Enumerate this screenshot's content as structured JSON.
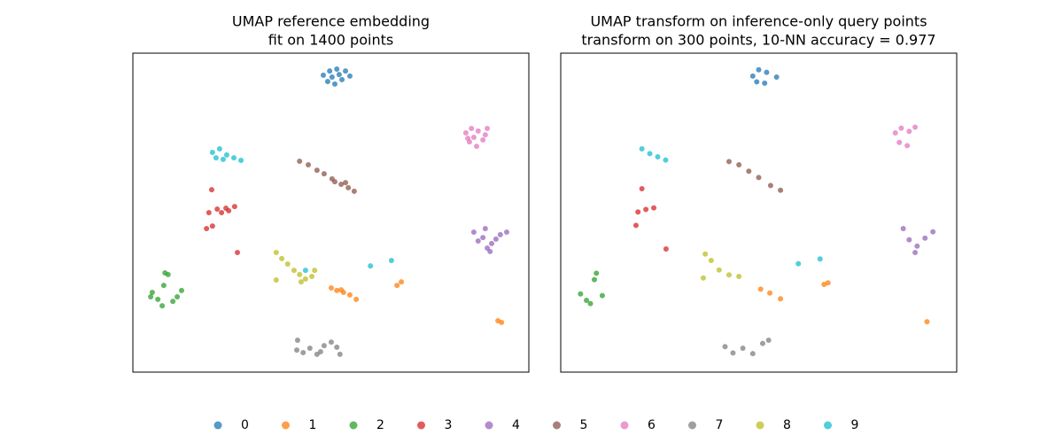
{
  "chart_data": [
    {
      "type": "scatter",
      "title": "UMAP reference embedding",
      "subtitle": "fit on 1400 points",
      "xlim": [
        0,
        100
      ],
      "ylim": [
        0,
        100
      ],
      "series": [
        {
          "name": "0",
          "color": "#1f77b4",
          "x": [
            48.1,
            49.7,
            51.5,
            53.7,
            54.8,
            49.2,
            51.0,
            52.8,
            50.3,
            52.1
          ],
          "y": [
            93.1,
            94.4,
            95.0,
            94.4,
            92.8,
            91.1,
            90.3,
            91.7,
            92.5,
            93.3
          ]
        },
        {
          "name": "1",
          "color": "#ff7f0e",
          "x": [
            50.1,
            51.5,
            53.2,
            54.8,
            56.4,
            52.6,
            66.7,
            67.8,
            92.2,
            93.1
          ],
          "y": [
            26.4,
            25.6,
            25.0,
            24.2,
            22.8,
            25.8,
            27.2,
            28.3,
            16.1,
            15.6
          ]
        },
        {
          "name": "2",
          "color": "#2ca02c",
          "x": [
            4.9,
            6.3,
            7.8,
            8.9,
            10.1,
            11.2,
            12.3,
            7.4,
            8.1,
            4.5
          ],
          "y": [
            25.0,
            22.8,
            27.2,
            30.6,
            22.2,
            23.6,
            25.6,
            20.8,
            31.1,
            23.6
          ]
        },
        {
          "name": "3",
          "color": "#d62728",
          "x": [
            19.2,
            21.3,
            23.5,
            25.7,
            20.1,
            18.6,
            22.4,
            19.9,
            26.4,
            24.2
          ],
          "y": [
            50.0,
            51.1,
            51.4,
            51.9,
            45.8,
            45.0,
            50.0,
            57.2,
            37.5,
            50.6
          ]
        },
        {
          "name": "4",
          "color": "#9467bd",
          "x": [
            86.1,
            87.2,
            88.4,
            89.5,
            90.6,
            91.7,
            92.8,
            94.4,
            89.0,
            90.2
          ],
          "y": [
            43.9,
            41.1,
            42.2,
            38.9,
            40.3,
            41.7,
            43.1,
            43.9,
            45.0,
            37.8
          ]
        },
        {
          "name": "5",
          "color": "#8c564b",
          "x": [
            42.1,
            44.3,
            46.5,
            48.3,
            50.3,
            52.6,
            54.4,
            55.9,
            51.0,
            53.7
          ],
          "y": [
            66.1,
            65.0,
            63.3,
            62.2,
            60.6,
            58.9,
            57.8,
            56.7,
            59.7,
            59.4
          ]
        },
        {
          "name": "6",
          "color": "#e377c2",
          "x": [
            84.1,
            85.5,
            87.2,
            89.0,
            85.0,
            86.8,
            88.4,
            89.5,
            86.1,
            84.6
          ],
          "y": [
            75.0,
            76.4,
            75.6,
            74.4,
            72.2,
            70.8,
            72.8,
            76.4,
            73.6,
            73.3
          ]
        },
        {
          "name": "7",
          "color": "#7f7f7f",
          "x": [
            41.4,
            43.0,
            44.7,
            46.5,
            48.3,
            50.1,
            51.5,
            52.3,
            41.6,
            47.4
          ],
          "y": [
            6.9,
            6.1,
            7.5,
            5.6,
            8.3,
            9.4,
            7.8,
            5.6,
            10.0,
            6.4
          ]
        },
        {
          "name": "8",
          "color": "#bcbd22",
          "x": [
            36.2,
            37.6,
            39.1,
            40.7,
            42.1,
            43.6,
            45.2,
            42.5,
            45.9,
            36.2
          ],
          "y": [
            37.5,
            35.6,
            33.9,
            31.9,
            30.6,
            29.2,
            30.0,
            28.3,
            31.9,
            28.9
          ]
        },
        {
          "name": "9",
          "color": "#17becf",
          "x": [
            20.1,
            21.9,
            23.7,
            25.5,
            27.3,
            21.0,
            22.8,
            60.0,
            65.3,
            43.6
          ],
          "y": [
            68.9,
            70.0,
            68.1,
            67.2,
            66.4,
            67.2,
            66.7,
            33.3,
            35.0,
            31.9
          ]
        }
      ]
    },
    {
      "type": "scatter",
      "title": "UMAP transform on inference-only query points",
      "subtitle": "transform on 300 points, 10-NN accuracy = 0.977",
      "xlim": [
        0,
        100
      ],
      "ylim": [
        0,
        100
      ],
      "series": [
        {
          "name": "0",
          "color": "#1f77b4",
          "x": [
            48.5,
            50.0,
            52.0,
            54.5,
            49.5,
            51.5
          ],
          "y": [
            92.8,
            94.8,
            94.0,
            92.5,
            91.0,
            90.6
          ]
        },
        {
          "name": "1",
          "color": "#ff7f0e",
          "x": [
            50.5,
            52.8,
            55.5,
            66.5,
            67.5,
            92.5
          ],
          "y": [
            26.0,
            24.8,
            23.0,
            27.5,
            28.0,
            15.8
          ]
        },
        {
          "name": "2",
          "color": "#2ca02c",
          "x": [
            5.0,
            6.5,
            8.5,
            10.5,
            7.5,
            9.0
          ],
          "y": [
            24.5,
            22.5,
            29.0,
            24.0,
            21.5,
            31.0
          ]
        },
        {
          "name": "3",
          "color": "#d62728",
          "x": [
            19.5,
            21.5,
            23.5,
            19.0,
            20.5,
            26.6
          ],
          "y": [
            50.2,
            51.0,
            51.5,
            46.0,
            57.5,
            38.6
          ]
        },
        {
          "name": "4",
          "color": "#9467bd",
          "x": [
            86.5,
            88.0,
            90.0,
            92.0,
            94.0,
            89.5
          ],
          "y": [
            45.0,
            41.5,
            39.5,
            42.0,
            44.0,
            37.5
          ]
        },
        {
          "name": "5",
          "color": "#8c564b",
          "x": [
            42.5,
            45.0,
            47.5,
            50.0,
            53.0,
            55.5
          ],
          "y": [
            66.0,
            65.0,
            63.0,
            61.0,
            58.5,
            57.0
          ]
        },
        {
          "name": "6",
          "color": "#e377c2",
          "x": [
            84.5,
            86.0,
            88.0,
            89.5,
            85.5,
            87.5
          ],
          "y": [
            75.0,
            76.5,
            75.5,
            76.8,
            72.0,
            71.0
          ]
        },
        {
          "name": "7",
          "color": "#7f7f7f",
          "x": [
            41.5,
            43.5,
            46.0,
            48.5,
            51.0,
            52.5
          ],
          "y": [
            8.0,
            6.0,
            7.5,
            5.8,
            9.0,
            10.0
          ]
        },
        {
          "name": "8",
          "color": "#bcbd22",
          "x": [
            36.5,
            38.0,
            40.0,
            42.5,
            45.0,
            36.0
          ],
          "y": [
            37.0,
            35.0,
            32.0,
            30.5,
            30.0,
            29.5
          ]
        },
        {
          "name": "9",
          "color": "#17becf",
          "x": [
            20.5,
            22.5,
            24.5,
            26.5,
            60.0,
            65.5
          ],
          "y": [
            70.0,
            68.5,
            67.5,
            66.5,
            34.0,
            35.5
          ]
        }
      ]
    }
  ]
}
